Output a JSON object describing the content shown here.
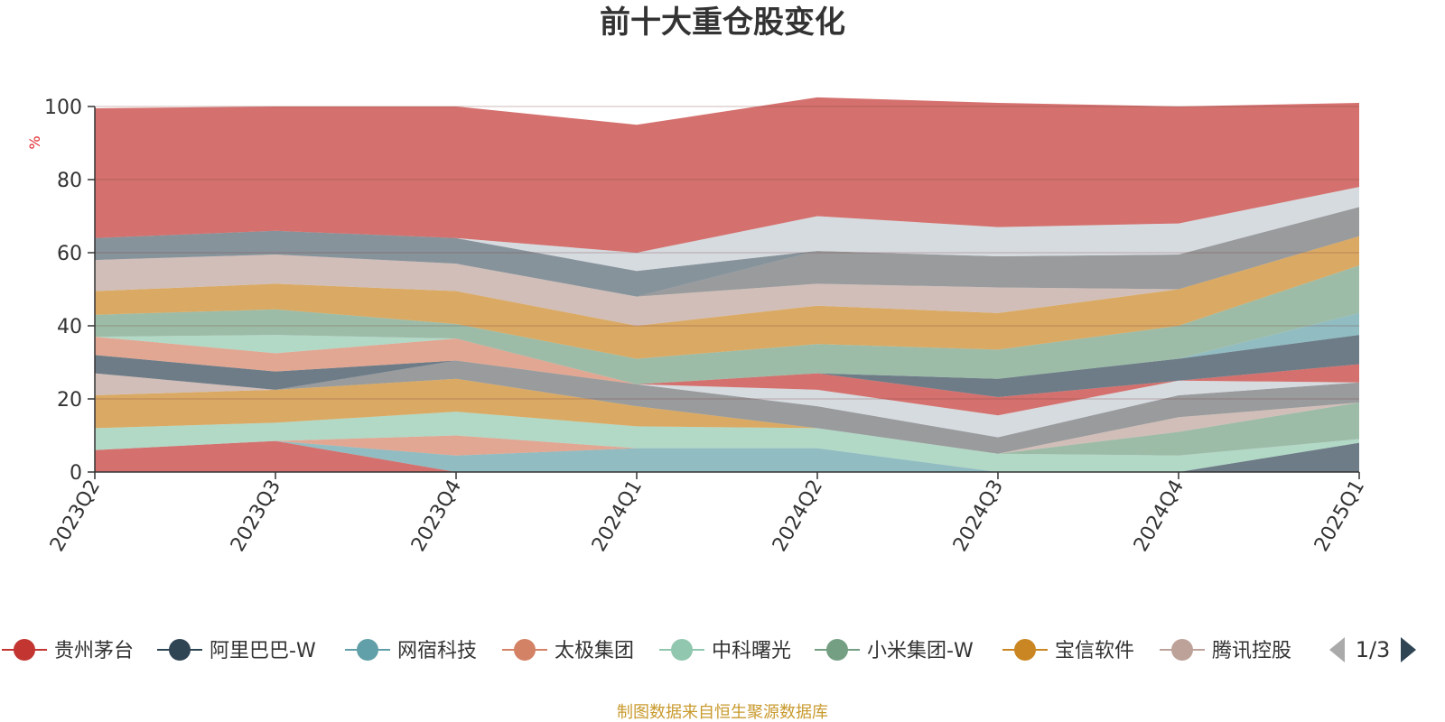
{
  "colors": {
    "axis": "#333333",
    "grid": "rgba(120,60,60,0.35)",
    "ylabel": "#e0282c",
    "source": "#c99a2e",
    "pager_active": "#2f4554",
    "pager_inactive": "#aaaaaa"
  },
  "chart_data": {
    "type": "area",
    "stacked": true,
    "stack_mode": "percent",
    "title": "前十大重仓股变化",
    "xlabel": "",
    "ylabel": "%",
    "ylim": [
      0,
      100
    ],
    "yticks": [
      0,
      20,
      40,
      60,
      80,
      100
    ],
    "grid": true,
    "legend_position": "bottom",
    "categories": [
      "2023Q2",
      "2023Q3",
      "2023Q4",
      "2024Q1",
      "2024Q2",
      "2024Q3",
      "2024Q4",
      "2025Q1"
    ],
    "series": [
      {
        "name": "贵州茅台",
        "color": "#c23531",
        "values": [
          6,
          8.5,
          0,
          0,
          0,
          0,
          0,
          0
        ]
      },
      {
        "name": "",
        "color": "#2f4554",
        "values": [
          0,
          0,
          0,
          0,
          0,
          0,
          0,
          8
        ]
      },
      {
        "name": "",
        "color": "#61a0a8",
        "values": [
          0,
          0,
          4.5,
          6.5,
          6.5,
          0,
          0,
          0
        ]
      },
      {
        "name": "",
        "color": "#d48265",
        "values": [
          0,
          0,
          5.5,
          0,
          0,
          0,
          0,
          0
        ]
      },
      {
        "name": "",
        "color": "#91c7ae",
        "values": [
          6,
          5,
          6.5,
          6,
          5.5,
          5,
          4.5,
          1
        ]
      },
      {
        "name": "",
        "color": "#749f83",
        "values": [
          0,
          0,
          0,
          0,
          0,
          0,
          6.5,
          10
        ]
      },
      {
        "name": "",
        "color": "#ca8622",
        "values": [
          9,
          9,
          9,
          5.5,
          0,
          0,
          0,
          0
        ]
      },
      {
        "name": "",
        "color": "#bda29a",
        "values": [
          6,
          0,
          0,
          0,
          0,
          0,
          4,
          0
        ]
      },
      {
        "name": "",
        "color": "#6e7074",
        "values": [
          0,
          0,
          5,
          6,
          6,
          4.5,
          6,
          5.5
        ]
      },
      {
        "name": "",
        "color": "#546570",
        "values": [
          0,
          0,
          0,
          0,
          0,
          0,
          0,
          0
        ]
      },
      {
        "name": "",
        "color": "#c4ccd3",
        "values": [
          0,
          0,
          0,
          0,
          4.5,
          6,
          4,
          0
        ]
      },
      {
        "name": "",
        "color": "#c23531",
        "values": [
          0,
          0,
          0,
          0,
          4.5,
          5,
          0,
          5
        ]
      },
      {
        "name": "",
        "color": "#2f4554",
        "values": [
          5,
          5,
          0,
          0,
          0,
          5,
          6,
          8
        ]
      },
      {
        "name": "",
        "color": "#61a0a8",
        "values": [
          0,
          0,
          0,
          0,
          0,
          0,
          0,
          6
        ]
      },
      {
        "name": "",
        "color": "#d48265",
        "values": [
          5,
          5,
          6,
          0,
          0,
          0,
          0,
          0
        ]
      },
      {
        "name": "",
        "color": "#91c7ae",
        "values": [
          0,
          5,
          0,
          0,
          0,
          0,
          0,
          0
        ]
      },
      {
        "name": "",
        "color": "#749f83",
        "values": [
          6,
          7,
          4,
          7,
          8,
          8,
          9,
          13
        ]
      },
      {
        "name": "",
        "color": "#ca8622",
        "values": [
          6.5,
          7,
          9,
          9,
          10.5,
          10,
          10,
          8
        ]
      },
      {
        "name": "",
        "color": "#bda29a",
        "values": [
          8.5,
          8,
          7.5,
          8,
          6,
          7,
          0,
          0
        ]
      },
      {
        "name": "",
        "color": "#6e7074",
        "values": [
          0,
          0,
          0,
          0,
          9,
          8.5,
          9.5,
          8
        ]
      },
      {
        "name": "",
        "color": "#546570",
        "values": [
          6,
          6.5,
          7,
          7,
          0,
          0,
          0,
          0
        ]
      },
      {
        "name": "",
        "color": "#c4ccd3",
        "values": [
          0,
          0,
          0,
          5,
          9.5,
          8,
          8.5,
          5.5
        ]
      },
      {
        "name": "",
        "color": "#c23531",
        "values": [
          35.5,
          34,
          36,
          35,
          32.5,
          34,
          32,
          23
        ]
      }
    ]
  },
  "legend": {
    "items": [
      {
        "name": "贵州茅台",
        "color": "#c23531"
      },
      {
        "name": "阿里巴巴-W",
        "color": "#2f4554"
      },
      {
        "name": "网宿科技",
        "color": "#61a0a8"
      },
      {
        "name": "太极集团",
        "color": "#d48265"
      },
      {
        "name": "中科曙光",
        "color": "#91c7ae"
      },
      {
        "name": "小米集团-W",
        "color": "#749f83"
      },
      {
        "name": "宝信软件",
        "color": "#ca8622"
      },
      {
        "name": "腾讯控股",
        "color": "#bda29a"
      }
    ],
    "page_text": "1/3"
  },
  "source_text": "制图数据来自恒生聚源数据库"
}
